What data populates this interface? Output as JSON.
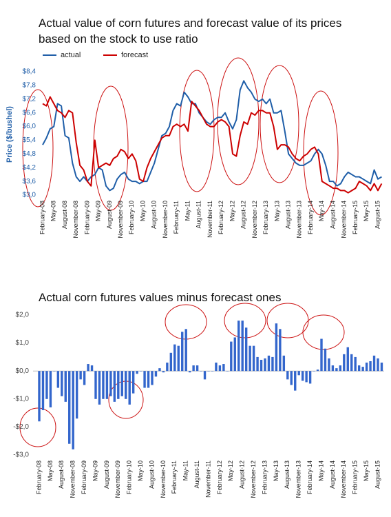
{
  "chart_data": [
    {
      "type": "line",
      "title": "Actual value of corn futures and forecast value of its prices based on the stock to use ratio",
      "y_label": "Price ($/bushel)",
      "categories": [
        "February-08",
        null,
        null,
        "May-08",
        null,
        null,
        "August-08",
        null,
        null,
        "November-08",
        null,
        null,
        "February-09",
        null,
        null,
        "May-09",
        null,
        null,
        "August-09",
        null,
        null,
        "November-09",
        null,
        null,
        "February-10",
        null,
        null,
        "May-10",
        null,
        null,
        "August-10",
        null,
        null,
        "November-10",
        null,
        null,
        "February-11",
        null,
        null,
        "May-11",
        null,
        null,
        "August-11",
        null,
        null,
        "November-11",
        null,
        null,
        "February-12",
        null,
        null,
        "May-12",
        null,
        null,
        "August-12",
        null,
        null,
        "November-12",
        null,
        null,
        "February-13",
        null,
        null,
        "May-13",
        null,
        null,
        "August-13",
        null,
        null,
        "November-13",
        null,
        null,
        "February-14",
        null,
        null,
        "May-14",
        null,
        null,
        "August-14",
        null,
        null,
        "November-14",
        null,
        null,
        "February-15",
        null,
        null,
        "May-15",
        null,
        null,
        "August-15",
        null
      ],
      "series": [
        {
          "name": "actual",
          "color": "#1f5ea8",
          "values": [
            5.2,
            5.5,
            5.9,
            6.0,
            7.0,
            6.9,
            5.6,
            5.5,
            4.4,
            3.8,
            3.6,
            3.8,
            3.6,
            3.8,
            3.9,
            4.2,
            4.1,
            3.4,
            3.2,
            3.3,
            3.7,
            3.9,
            4.0,
            3.7,
            3.6,
            3.6,
            3.5,
            3.6,
            3.6,
            4.0,
            4.4,
            5.0,
            5.6,
            5.7,
            6.0,
            6.7,
            7.0,
            6.9,
            7.5,
            7.3,
            7.0,
            7.0,
            6.6,
            6.4,
            6.2,
            6.1,
            6.3,
            6.4,
            6.4,
            6.6,
            6.2,
            5.9,
            6.3,
            7.6,
            8.0,
            7.7,
            7.5,
            7.2,
            7.1,
            7.2,
            7.0,
            7.2,
            6.6,
            6.6,
            6.7,
            5.8,
            4.8,
            4.6,
            4.4,
            4.3,
            4.3,
            4.4,
            4.5,
            4.8,
            5.0,
            4.8,
            4.3,
            3.6,
            3.6,
            3.4,
            3.5,
            3.8,
            4.0,
            3.9,
            3.8,
            3.8,
            3.7,
            3.6,
            3.5,
            4.1,
            3.7,
            3.8
          ]
        },
        {
          "name": "forecast",
          "color": "#cc0000",
          "values": [
            7.0,
            6.9,
            7.3,
            7.0,
            6.7,
            6.6,
            6.4,
            6.7,
            6.6,
            5.3,
            4.3,
            4.1,
            3.6,
            3.4,
            5.4,
            4.2,
            4.3,
            4.4,
            4.3,
            4.6,
            4.7,
            5.0,
            4.9,
            4.6,
            4.8,
            4.5,
            3.7,
            3.6,
            4.2,
            4.6,
            4.9,
            5.2,
            5.5,
            5.6,
            5.6,
            6.0,
            6.1,
            6.0,
            6.1,
            5.8,
            7.1,
            6.9,
            6.7,
            6.4,
            6.1,
            6.0,
            6.0,
            6.2,
            6.3,
            6.2,
            6.0,
            4.8,
            4.7,
            5.6,
            6.2,
            6.1,
            6.6,
            6.5,
            6.7,
            6.7,
            6.6,
            6.6,
            6.0,
            5.0,
            5.2,
            5.2,
            5.1,
            4.8,
            4.6,
            4.5,
            4.7,
            4.8,
            5.0,
            5.1,
            4.8,
            3.6,
            3.5,
            3.4,
            3.3,
            3.3,
            3.2,
            3.2,
            3.1,
            3.2,
            3.3,
            3.6,
            3.5,
            3.4,
            3.2,
            3.5,
            3.2,
            3.5
          ]
        }
      ],
      "ylim": [
        3.0,
        8.4
      ],
      "yticks": [
        {
          "value": 3.0,
          "label": "$3,0"
        },
        {
          "value": 3.6,
          "label": "$3,6"
        },
        {
          "value": 4.2,
          "label": "$4,2"
        },
        {
          "value": 4.8,
          "label": "$4,8"
        },
        {
          "value": 5.4,
          "label": "$5,4"
        },
        {
          "value": 6.0,
          "label": "$6,0"
        },
        {
          "value": 6.6,
          "label": "$6,6"
        },
        {
          "value": 7.2,
          "label": "$7,2"
        },
        {
          "value": 7.8,
          "label": "$7,8"
        },
        {
          "value": 8.4,
          "label": "$8,4"
        }
      ],
      "grid": false,
      "legend": "top-left"
    },
    {
      "type": "bar",
      "title": "Actual corn futures values minus forecast ones",
      "categories": [
        "February-08",
        null,
        null,
        "May-08",
        null,
        null,
        "August-08",
        null,
        null,
        "November-08",
        null,
        null,
        "February-09",
        null,
        null,
        "May-09",
        null,
        null,
        "August-09",
        null,
        null,
        "November-09",
        null,
        null,
        "February-10",
        null,
        null,
        "May-10",
        null,
        null,
        "August-10",
        null,
        null,
        "November-10",
        null,
        null,
        "February-11",
        null,
        null,
        "May-11",
        null,
        null,
        "August-11",
        null,
        null,
        "November-11",
        null,
        null,
        "February-12",
        null,
        null,
        "May-12",
        null,
        null,
        "August-12",
        null,
        null,
        "November-12",
        null,
        null,
        "February-13",
        null,
        null,
        "May-13",
        null,
        null,
        "August-13",
        null,
        null,
        "November-13",
        null,
        null,
        "February-14",
        null,
        null,
        "May-14",
        null,
        null,
        "August-14",
        null,
        null,
        "November-14",
        null,
        null,
        "February-15",
        null,
        null,
        "May-15",
        null,
        null,
        "August-15",
        null
      ],
      "values": [
        -1.8,
        -1.4,
        -1.0,
        -1.3,
        0.0,
        -0.6,
        -0.9,
        -1.1,
        -2.6,
        -2.8,
        -1.7,
        -0.3,
        -0.5,
        0.25,
        0.2,
        -1.0,
        -1.2,
        -1.0,
        -1.0,
        -0.9,
        -1.1,
        -1.0,
        -0.9,
        -1.0,
        -1.2,
        -0.8,
        -0.1,
        0.0,
        -0.6,
        -0.6,
        -0.5,
        -0.2,
        0.1,
        -0.05,
        0.3,
        0.65,
        0.95,
        0.9,
        1.4,
        1.5,
        -0.05,
        0.2,
        0.2,
        0.0,
        -0.3,
        0.0,
        0.0,
        0.3,
        0.2,
        0.25,
        0.0,
        1.05,
        1.2,
        1.8,
        1.8,
        1.55,
        0.9,
        0.9,
        0.5,
        0.4,
        0.45,
        0.55,
        0.5,
        1.7,
        1.5,
        0.55,
        -0.3,
        -0.5,
        -0.7,
        -0.15,
        -0.35,
        -0.4,
        -0.45,
        0.0,
        0.05,
        1.15,
        0.8,
        0.45,
        0.2,
        0.1,
        0.2,
        0.6,
        0.85,
        0.6,
        0.5,
        0.2,
        0.15,
        0.3,
        0.35,
        0.55,
        0.45,
        0.3
      ],
      "color": "#3366cc",
      "ylim": [
        -3.0,
        2.0
      ],
      "yticks": [
        {
          "value": -3.0,
          "label": "-$3,0"
        },
        {
          "value": -2.0,
          "label": "-$2,0"
        },
        {
          "value": -1.0,
          "label": "-$1,0"
        },
        {
          "value": 0.0,
          "label": "$0,0"
        },
        {
          "value": 1.0,
          "label": "$1,0"
        },
        {
          "value": 2.0,
          "label": "$2,0"
        }
      ],
      "grid": false
    }
  ]
}
